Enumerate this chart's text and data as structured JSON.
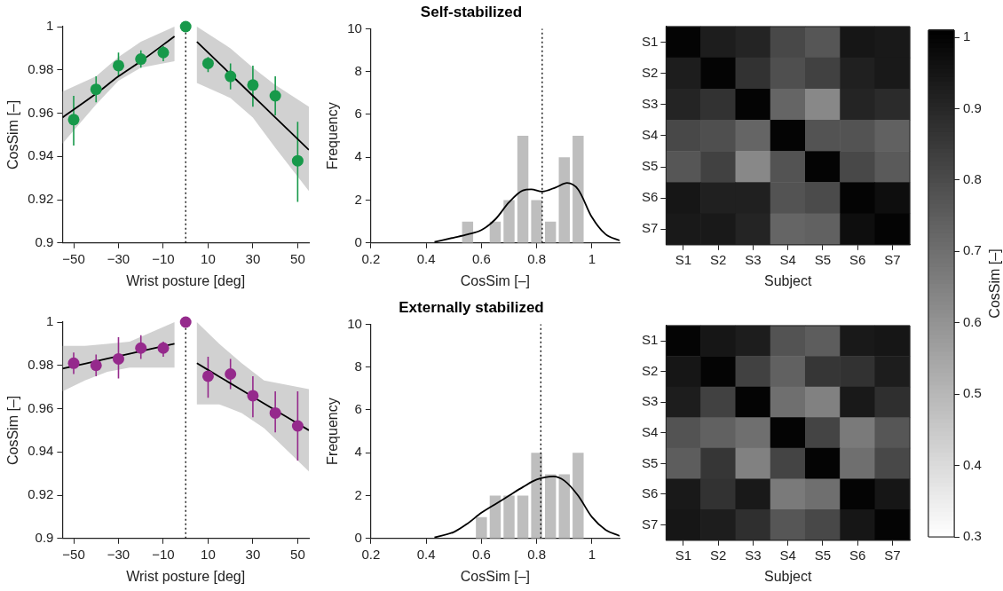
{
  "chart_data": [
    {
      "type": "scatter",
      "xlabel": "Wrist posture [deg]",
      "ylabel": "CosSim [–]",
      "xlim": [
        -55,
        55
      ],
      "ylim": [
        0.9,
        1
      ],
      "xticks": [
        {
          "value": -50,
          "label": "−50"
        },
        {
          "value": -30,
          "label": "−30"
        },
        {
          "value": -10,
          "label": "−10"
        },
        10,
        30,
        50
      ],
      "yticks": [
        0.9,
        0.92,
        0.94,
        0.96,
        0.98,
        1
      ],
      "grid": false,
      "legend": false,
      "ref_lines": [
        {
          "axis": "x",
          "value": 0,
          "color": "#000000",
          "line_style": "dotted"
        }
      ],
      "series": [
        {
          "type": "scatter",
          "marker": "circle",
          "color": "#17994a",
          "x": [
            -50,
            -40,
            -30,
            -20,
            -10,
            0,
            10,
            20,
            30,
            40,
            50
          ],
          "values": [
            0.957,
            0.971,
            0.982,
            0.985,
            0.988,
            1,
            0.983,
            0.977,
            0.973,
            0.968,
            0.938
          ],
          "errors": [
            [
              0.945,
              0.968
            ],
            [
              0.965,
              0.977
            ],
            [
              0.977,
              0.988
            ],
            [
              0.981,
              0.989
            ],
            [
              0.984,
              0.991
            ],
            null,
            [
              0.979,
              0.986
            ],
            [
              0.971,
              0.983
            ],
            [
              0.963,
              0.982
            ],
            [
              0.959,
              0.977
            ],
            [
              0.919,
              0.956
            ]
          ]
        },
        {
          "type": "line",
          "marker": "none",
          "color": "#000000",
          "x": [
            -55,
            -40,
            -30,
            -20,
            -5
          ],
          "values": [
            0.958,
            0.969,
            0.977,
            0.984,
            0.9955
          ],
          "lower": [
            0.946,
            0.964,
            0.975,
            0.981,
            0.984
          ],
          "upper": [
            0.97,
            0.977,
            0.986,
            0.993,
            1
          ]
        },
        {
          "type": "line",
          "marker": "none",
          "color": "#000000",
          "x": [
            5,
            20,
            30,
            40,
            55
          ],
          "values": [
            0.993,
            0.978,
            0.968,
            0.958,
            0.943
          ],
          "lower": [
            0.974,
            0.967,
            0.958,
            0.944,
            0.924
          ],
          "upper": [
            1,
            0.99,
            0.981,
            0.973,
            0.963
          ]
        }
      ]
    },
    {
      "type": "histogram",
      "title": "Self-stabilized",
      "xlabel": "CosSim [–]",
      "ylabel": "Frequency",
      "xlim": [
        0.2,
        1.1
      ],
      "xticks": [
        0.2,
        0.4,
        0.6,
        0.8,
        1
      ],
      "ylim": [
        0,
        10
      ],
      "yticks": [
        0,
        2,
        4,
        6,
        8,
        10
      ],
      "grid": false,
      "legend": false,
      "ref_lines": [
        {
          "axis": "x",
          "value": 0.82,
          "color": "#000000",
          "line_style": "dotted"
        }
      ],
      "series": [
        {
          "type": "histogram",
          "color": "#bebebe",
          "bins": [
            0.525,
            0.575,
            0.625,
            0.675,
            0.725,
            0.775,
            0.825,
            0.875,
            0.925,
            0.975
          ],
          "values": [
            1,
            0,
            1,
            2,
            5,
            2,
            1,
            4,
            5
          ]
        },
        {
          "type": "line",
          "color": "#000000",
          "x": [
            0.43,
            0.5,
            0.55,
            0.6,
            0.65,
            0.7,
            0.75,
            0.78,
            0.82,
            0.87,
            0.91,
            0.95,
            1,
            1.05,
            1.1
          ],
          "values": [
            0.05,
            0.25,
            0.4,
            0.6,
            1.1,
            1.9,
            2.45,
            2.5,
            2.4,
            2.6,
            2.8,
            2.5,
            1.2,
            0.4,
            0.12
          ]
        }
      ]
    },
    {
      "type": "heatmap",
      "xlabel": "Subject",
      "categories": [
        "S1",
        "S2",
        "S3",
        "S4",
        "S5",
        "S6",
        "S7"
      ],
      "y_categories": [
        "S1",
        "S2",
        "S3",
        "S4",
        "S5",
        "S6",
        "S7"
      ],
      "cells": [
        [
          1,
          0.93,
          0.91,
          0.81,
          0.77,
          0.95,
          0.94
        ],
        [
          0.93,
          1,
          0.87,
          0.79,
          0.83,
          0.92,
          0.94
        ],
        [
          0.91,
          0.87,
          1,
          0.73,
          0.63,
          0.91,
          0.89
        ],
        [
          0.81,
          0.79,
          0.73,
          1,
          0.78,
          0.78,
          0.74
        ],
        [
          0.77,
          0.83,
          0.63,
          0.78,
          1,
          0.81,
          0.76
        ],
        [
          0.95,
          0.92,
          0.92,
          0.78,
          0.8,
          1,
          0.97
        ],
        [
          0.94,
          0.94,
          0.91,
          0.73,
          0.74,
          0.97,
          1
        ]
      ],
      "clim": [
        0.3,
        1.01
      ],
      "cticks": [
        0.6,
        0.7,
        0.8,
        0.9,
        1
      ],
      "clabel": "CosSim [–]"
    },
    {
      "type": "scatter",
      "xlabel": "Wrist posture [deg]",
      "ylabel": "CosSim [–]",
      "xlim": [
        -55,
        55
      ],
      "ylim": [
        0.9,
        1
      ],
      "xticks": [
        {
          "value": -50,
          "label": "−50"
        },
        {
          "value": -30,
          "label": "−30"
        },
        {
          "value": -10,
          "label": "−10"
        },
        10,
        30,
        50
      ],
      "yticks": [
        0.9,
        0.92,
        0.94,
        0.96,
        0.98,
        1
      ],
      "grid": false,
      "legend": false,
      "ref_lines": [
        {
          "axis": "x",
          "value": 0,
          "color": "#000000",
          "line_style": "dotted"
        }
      ],
      "series": [
        {
          "type": "scatter",
          "marker": "circle",
          "color": "#952a8c",
          "x": [
            -50,
            -40,
            -30,
            -20,
            -10,
            0,
            10,
            20,
            30,
            40,
            50
          ],
          "values": [
            0.981,
            0.98,
            0.983,
            0.988,
            0.988,
            1,
            0.975,
            0.976,
            0.966,
            0.958,
            0.952
          ],
          "errors": [
            [
              0.976,
              0.986
            ],
            [
              0.975,
              0.985
            ],
            [
              0.974,
              0.993
            ],
            [
              0.983,
              0.994
            ],
            [
              0.984,
              0.991
            ],
            null,
            [
              0.965,
              0.984
            ],
            [
              0.969,
              0.983
            ],
            [
              0.956,
              0.975
            ],
            [
              0.949,
              0.968
            ],
            [
              0.936,
              0.968
            ]
          ]
        },
        {
          "type": "line",
          "marker": "none",
          "color": "#000000",
          "x": [
            -55,
            -45,
            -35,
            -25,
            -5
          ],
          "values": [
            0.9785,
            0.9808,
            0.9831,
            0.9854,
            0.99
          ],
          "lower": [
            0.968,
            0.973,
            0.977,
            0.979,
            0.979
          ],
          "upper": [
            0.989,
            0.989,
            0.99,
            0.991,
            1
          ]
        },
        {
          "type": "line",
          "marker": "none",
          "color": "#000000",
          "x": [
            5,
            15,
            25,
            35,
            55
          ],
          "values": [
            0.981,
            0.9748,
            0.9686,
            0.9624,
            0.95
          ],
          "lower": [
            0.962,
            0.962,
            0.958,
            0.951,
            0.931
          ],
          "upper": [
            1,
            0.99,
            0.981,
            0.973,
            0.969
          ]
        }
      ]
    },
    {
      "type": "histogram",
      "title": "Externally stabilized",
      "xlabel": "CosSim [–]",
      "ylabel": "Frequency",
      "xlim": [
        0.2,
        1.1
      ],
      "xticks": [
        0.2,
        0.4,
        0.6,
        0.8,
        1
      ],
      "ylim": [
        0,
        10
      ],
      "yticks": [
        0,
        2,
        4,
        6,
        8,
        10
      ],
      "grid": false,
      "legend": false,
      "ref_lines": [
        {
          "axis": "x",
          "value": 0.815,
          "color": "#000000",
          "line_style": "dotted"
        }
      ],
      "series": [
        {
          "type": "histogram",
          "color": "#bebebe",
          "bins": [
            0.575,
            0.625,
            0.675,
            0.725,
            0.775,
            0.825,
            0.875,
            0.925,
            0.975
          ],
          "values": [
            1,
            2,
            2,
            2,
            4,
            3,
            3,
            4
          ]
        },
        {
          "type": "line",
          "color": "#000000",
          "x": [
            0.43,
            0.5,
            0.55,
            0.6,
            0.65,
            0.7,
            0.75,
            0.8,
            0.86,
            0.9,
            0.95,
            1,
            1.05,
            1.1
          ],
          "values": [
            0.05,
            0.3,
            0.7,
            1.2,
            1.6,
            2,
            2.4,
            2.75,
            2.9,
            2.7,
            2,
            1,
            0.4,
            0.12
          ]
        }
      ]
    },
    {
      "type": "heatmap",
      "xlabel": "Subject",
      "categories": [
        "S1",
        "S2",
        "S3",
        "S4",
        "S5",
        "S6",
        "S7"
      ],
      "y_categories": [
        "S1",
        "S2",
        "S3",
        "S4",
        "S5",
        "S6",
        "S7"
      ],
      "cells": [
        [
          1,
          0.95,
          0.93,
          0.78,
          0.75,
          0.94,
          0.95
        ],
        [
          0.95,
          1,
          0.83,
          0.74,
          0.86,
          0.87,
          0.93
        ],
        [
          0.93,
          0.83,
          1,
          0.7,
          0.65,
          0.94,
          0.88
        ],
        [
          0.78,
          0.74,
          0.7,
          1,
          0.82,
          0.67,
          0.77
        ],
        [
          0.75,
          0.86,
          0.65,
          0.82,
          1,
          0.7,
          0.81
        ],
        [
          0.94,
          0.87,
          0.94,
          0.67,
          0.7,
          1,
          0.95
        ],
        [
          0.95,
          0.93,
          0.88,
          0.77,
          0.81,
          0.95,
          1
        ]
      ],
      "clim": [
        0.3,
        1.01
      ],
      "cticks": [
        0.3,
        0.4,
        0.5
      ]
    }
  ]
}
